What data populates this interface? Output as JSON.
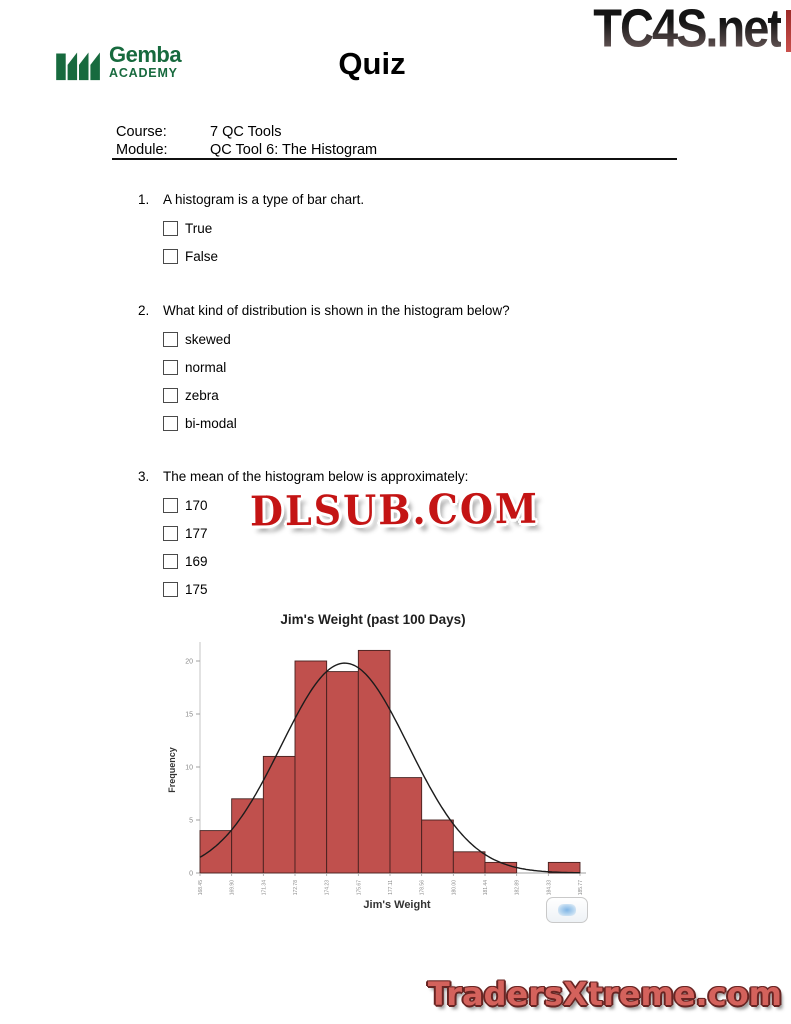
{
  "watermarks": {
    "tc4s": "TC4S.net",
    "dlsub": "DLSUB.COM",
    "traders": "TradersXtreme.com"
  },
  "logo": {
    "name": "Gemba",
    "sub": "ACADEMY",
    "green": "#176a3e"
  },
  "page_title": "Quiz",
  "meta": {
    "course_label": "Course:",
    "course_value": "7 QC Tools",
    "module_label": "Module:",
    "module_value": "QC Tool 6: The Histogram"
  },
  "questions": [
    {
      "number": "1.",
      "text": "A histogram is a type of bar chart.",
      "options": [
        "True",
        "False"
      ]
    },
    {
      "number": "2.",
      "text": "What kind of distribution is shown in the histogram below?",
      "options": [
        "skewed",
        "normal",
        "zebra",
        "bi-modal"
      ]
    },
    {
      "number": "3.",
      "text": "The mean of the histogram below is approximately:",
      "options": [
        "170",
        "177",
        "169",
        "175"
      ]
    }
  ],
  "chart_data": {
    "type": "bar",
    "title": "Jim's Weight (past 100 Days)",
    "xlabel": "Jim's Weight",
    "ylabel": "Frequency",
    "bin_edges": [
      "168.45",
      "169.90",
      "171.34",
      "172.78",
      "174.23",
      "175.67",
      "177.11",
      "178.56",
      "180.00",
      "181.44",
      "182.89",
      "184.33",
      "185.77"
    ],
    "values": [
      4,
      7,
      11,
      20,
      19,
      21,
      9,
      5,
      2,
      1,
      0,
      1
    ],
    "yticks": [
      0,
      5,
      10,
      15,
      20
    ],
    "ylim": [
      0,
      22
    ],
    "grid": false,
    "legend": false,
    "bar_color": "#c0504d",
    "bar_edge": "#46201e",
    "axis_color": "#a0a0a0",
    "tick_label_color": "#8a8a8a",
    "curve": {
      "type": "normal",
      "mean": 175.05,
      "sd": 2.9,
      "peak": 19.8,
      "color": "#1c1c1c"
    }
  }
}
